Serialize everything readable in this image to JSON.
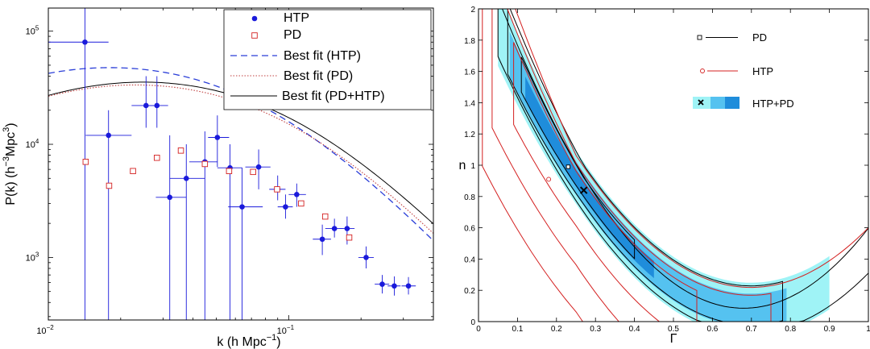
{
  "chart_data": [
    {
      "type": "scatter",
      "xscale": "log",
      "yscale": "log",
      "xlabel_main": "k  (h Mpc",
      "xlabel_sup": "−1",
      "xlabel_end": ")",
      "ylabel_main": "P(k)  (h",
      "ylabel_sup1": "−3",
      "ylabel_mid": "Mpc",
      "ylabel_sup2": "3",
      "ylabel_end": ")",
      "xlim": [
        0.01,
        0.4
      ],
      "ylim": [
        280,
        160000
      ],
      "x_ticks": [
        {
          "value": 0.01,
          "base": "10",
          "exp": "−2"
        },
        {
          "value": 0.1,
          "base": "10",
          "exp": "−1"
        }
      ],
      "y_ticks": [
        {
          "value": 1000,
          "base": "10",
          "exp": "3"
        },
        {
          "value": 10000,
          "base": "10",
          "exp": "4"
        },
        {
          "value": 100000,
          "base": "10",
          "exp": "5"
        }
      ],
      "legend": {
        "position": "top-right",
        "items": [
          "HTP",
          "PD",
          "Best fit (HTP)",
          "Best fit (PD)",
          "Best fit (PD+HTP)"
        ]
      },
      "colors": {
        "HTP": "#1a1adb",
        "PD": "#d42020",
        "fit_htp": "#2b3fd8",
        "fit_pd": "#c04040",
        "fit_joint": "#000000"
      },
      "series": [
        {
          "name": "HTP",
          "marker": "filled-circle",
          "points": [
            {
              "x": 0.0142,
              "y": 80000,
              "xerr": [
                0.01,
                0.0178
              ],
              "yerr": [
                0,
                160000
              ]
            },
            {
              "x": 0.0178,
              "y": 12000,
              "xerr": [
                0.0143,
                0.0222
              ],
              "yerr": [
                0,
                20000
              ]
            },
            {
              "x": 0.0255,
              "y": 22000,
              "xerr": [
                0.0222,
                0.0283
              ],
              "yerr": [
                14000,
                40000
              ]
            },
            {
              "x": 0.0283,
              "y": 22000,
              "xerr": [
                0.0255,
                0.0315
              ],
              "yerr": [
                14000,
                40000
              ]
            },
            {
              "x": 0.032,
              "y": 3400,
              "xerr": [
                0.028,
                0.0375
              ],
              "yerr": [
                0,
                12000
              ]
            },
            {
              "x": 0.0375,
              "y": 5000,
              "xerr": [
                0.032,
                0.0448
              ],
              "yerr": [
                0,
                10000
              ]
            },
            {
              "x": 0.0448,
              "y": 7000,
              "xerr": [
                0.0386,
                0.0505
              ],
              "yerr": [
                0,
                13000
              ]
            },
            {
              "x": 0.0505,
              "y": 11500,
              "xerr": [
                0.0462,
                0.0565
              ],
              "yerr": [
                6300,
                18000
              ]
            },
            {
              "x": 0.057,
              "y": 6200,
              "xerr": [
                0.0505,
                0.064
              ],
              "yerr": [
                0,
                10000
              ]
            },
            {
              "x": 0.064,
              "y": 2800,
              "xerr": [
                0.056,
                0.078
              ],
              "yerr": [
                0,
                6200
              ]
            },
            {
              "x": 0.075,
              "y": 6300,
              "xerr": [
                0.066,
                0.084
              ],
              "yerr": [
                4000,
                9000
              ]
            },
            {
              "x": 0.09,
              "y": 4000,
              "xerr": [
                0.083,
                0.097
              ],
              "yerr": [
                3200,
                5300
              ]
            },
            {
              "x": 0.097,
              "y": 2800,
              "xerr": [
                0.09,
                0.104
              ],
              "yerr": [
                2200,
                3600
              ]
            },
            {
              "x": 0.108,
              "y": 3600,
              "xerr": [
                0.1,
                0.118
              ],
              "yerr": [
                2800,
                4500
              ]
            },
            {
              "x": 0.138,
              "y": 1450,
              "xerr": [
                0.126,
                0.15
              ],
              "yerr": [
                1050,
                1950
              ]
            },
            {
              "x": 0.155,
              "y": 1800,
              "xerr": [
                0.142,
                0.168
              ],
              "yerr": [
                1500,
                2200
              ]
            },
            {
              "x": 0.175,
              "y": 1800,
              "xerr": [
                0.163,
                0.188
              ],
              "yerr": [
                1300,
                2300
              ]
            },
            {
              "x": 0.21,
              "y": 1000,
              "xerr": [
                0.195,
                0.226
              ],
              "yerr": [
                800,
                1250
              ]
            },
            {
              "x": 0.245,
              "y": 580,
              "xerr": [
                0.228,
                0.262
              ],
              "yerr": [
                480,
                700
              ]
            },
            {
              "x": 0.275,
              "y": 560,
              "xerr": [
                0.258,
                0.292
              ],
              "yerr": [
                460,
                680
              ]
            },
            {
              "x": 0.315,
              "y": 560,
              "xerr": [
                0.295,
                0.338
              ],
              "yerr": [
                470,
                670
              ]
            }
          ]
        },
        {
          "name": "PD",
          "marker": "open-square",
          "points": [
            {
              "x": 0.0143,
              "y": 7000
            },
            {
              "x": 0.0179,
              "y": 4300
            },
            {
              "x": 0.0225,
              "y": 5800
            },
            {
              "x": 0.0283,
              "y": 7600
            },
            {
              "x": 0.0356,
              "y": 8800
            },
            {
              "x": 0.0448,
              "y": 6700
            },
            {
              "x": 0.0565,
              "y": 5800
            },
            {
              "x": 0.0711,
              "y": 5700
            },
            {
              "x": 0.0895,
              "y": 4000
            },
            {
              "x": 0.1127,
              "y": 3000
            },
            {
              "x": 0.1419,
              "y": 2300
            },
            {
              "x": 0.1786,
              "y": 1500
            }
          ]
        }
      ]
    },
    {
      "type": "contour",
      "xlabel": "Γ",
      "ylabel": "n",
      "xlim": [
        0,
        1.0
      ],
      "ylim": [
        0,
        2
      ],
      "x_ticks": [
        "0",
        "0.1",
        "0.2",
        "0.3",
        "0.4",
        "0.5",
        "0.6",
        "0.7",
        "0.8",
        "0.9",
        "1"
      ],
      "y_ticks": [
        "0",
        "0.2",
        "0.4",
        "0.6",
        "0.8",
        "1",
        "1.2",
        "1.4",
        "1.6",
        "1.8",
        "2"
      ],
      "legend": {
        "position": "top-right",
        "items": [
          "PD",
          "HTP",
          "HTP+PD"
        ]
      },
      "colors": {
        "PD": "#000000",
        "HTP": "#d42020",
        "joint_outer": "#9ff3f6",
        "joint_mid": "#55c2f0",
        "joint_inner": "#1f8ddb"
      },
      "best_fits": [
        {
          "name": "PD",
          "x": 0.23,
          "y": 0.99
        },
        {
          "name": "HTP",
          "x": 0.18,
          "y": 0.91
        },
        {
          "name": "HTP+PD",
          "x": 0.27,
          "y": 0.84
        }
      ]
    }
  ]
}
